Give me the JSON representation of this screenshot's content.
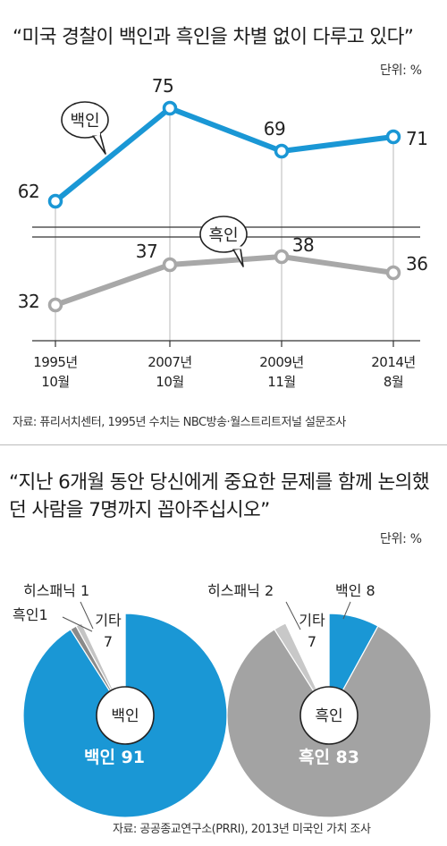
{
  "chart1": {
    "title": "“미국 경찰이 백인과 흑인을 차별 없이 다루고 있다”",
    "unit": "단위: %",
    "source": "자료: 퓨리서치센터, 1995년 수치는 NBC방송·월스트리트저널 설문조사",
    "chart_data": {
      "type": "line",
      "categories": [
        "1995년\n10월",
        "2007년\n10월",
        "2009년\n11월",
        "2014년\n8월"
      ],
      "series": [
        {
          "name": "백인",
          "values": [
            62,
            75,
            69,
            71
          ],
          "color": "#1a97d5"
        },
        {
          "name": "흑인",
          "values": [
            32,
            37,
            38,
            36
          ],
          "color": "#a8a8a8"
        }
      ],
      "ylabel": "",
      "axis_break": true,
      "grid": false
    }
  },
  "chart2": {
    "title": "“지난 6개월 동안 당신에게 중요한 문제를 함께 논의했던 사람을 7명까지 꼽아주십시오”",
    "unit": "단위: %",
    "source": "자료: 공공종교연구소(PRRI), 2013년 미국인 가치 조사",
    "chart_data": [
      {
        "type": "pie",
        "center_label": "백인",
        "slices": [
          {
            "name": "백인",
            "value": 91,
            "color": "#1a97d5"
          },
          {
            "name": "흑인",
            "value": 1,
            "color": "#8a8a8a"
          },
          {
            "name": "히스패닉",
            "value": 1,
            "color": "#c4c4c4"
          },
          {
            "name": "기타",
            "value": 7,
            "color": "#ffffff"
          }
        ],
        "labels": {
          "main": "백인 91",
          "black": "흑인1",
          "hispanic": "히스패닉 1",
          "other_name": "기타",
          "other_value": "7"
        }
      },
      {
        "type": "pie",
        "center_label": "흑인",
        "slices": [
          {
            "name": "백인",
            "value": 8,
            "color": "#1a97d5"
          },
          {
            "name": "흑인",
            "value": 83,
            "color": "#a3a3a3"
          },
          {
            "name": "히스패닉",
            "value": 2,
            "color": "#c8c8c8"
          },
          {
            "name": "기타",
            "value": 7,
            "color": "#ffffff"
          }
        ],
        "labels": {
          "main": "흑인 83",
          "white": "백인 8",
          "hispanic": "히스패닉 2",
          "other_name": "기타",
          "other_value": "7"
        }
      }
    ]
  }
}
